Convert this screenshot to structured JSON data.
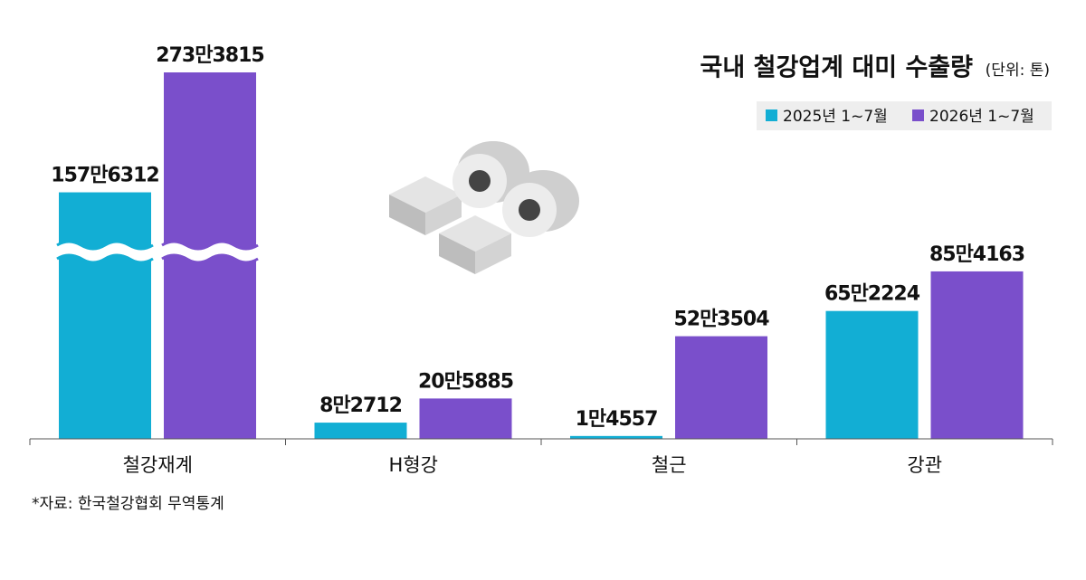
{
  "chart_data": {
    "type": "bar",
    "title": "국내 철강업계 대미 수출량",
    "unit_note": "(단위: 톤)",
    "source": "*자료: 한국철강협회 무역통계",
    "categories": [
      "철강재계",
      "H형강",
      "철근",
      "강관"
    ],
    "series": [
      {
        "name": "2025년 1~7월",
        "color": "#12aed4",
        "values": [
          1576312,
          82712,
          14557,
          652224
        ],
        "value_labels": [
          "157만6312",
          "8만2712",
          "1만4557",
          "65만2224"
        ]
      },
      {
        "name": "2026년 1~7월",
        "color": "#7a4fcb",
        "values": [
          2733815,
          205885,
          523504,
          854163
        ],
        "value_labels": [
          "273만3815",
          "20만5885",
          "52만3504",
          "85만4163"
        ]
      }
    ],
    "ylim": [
      0,
      900000
    ],
    "axis_break": true
  }
}
